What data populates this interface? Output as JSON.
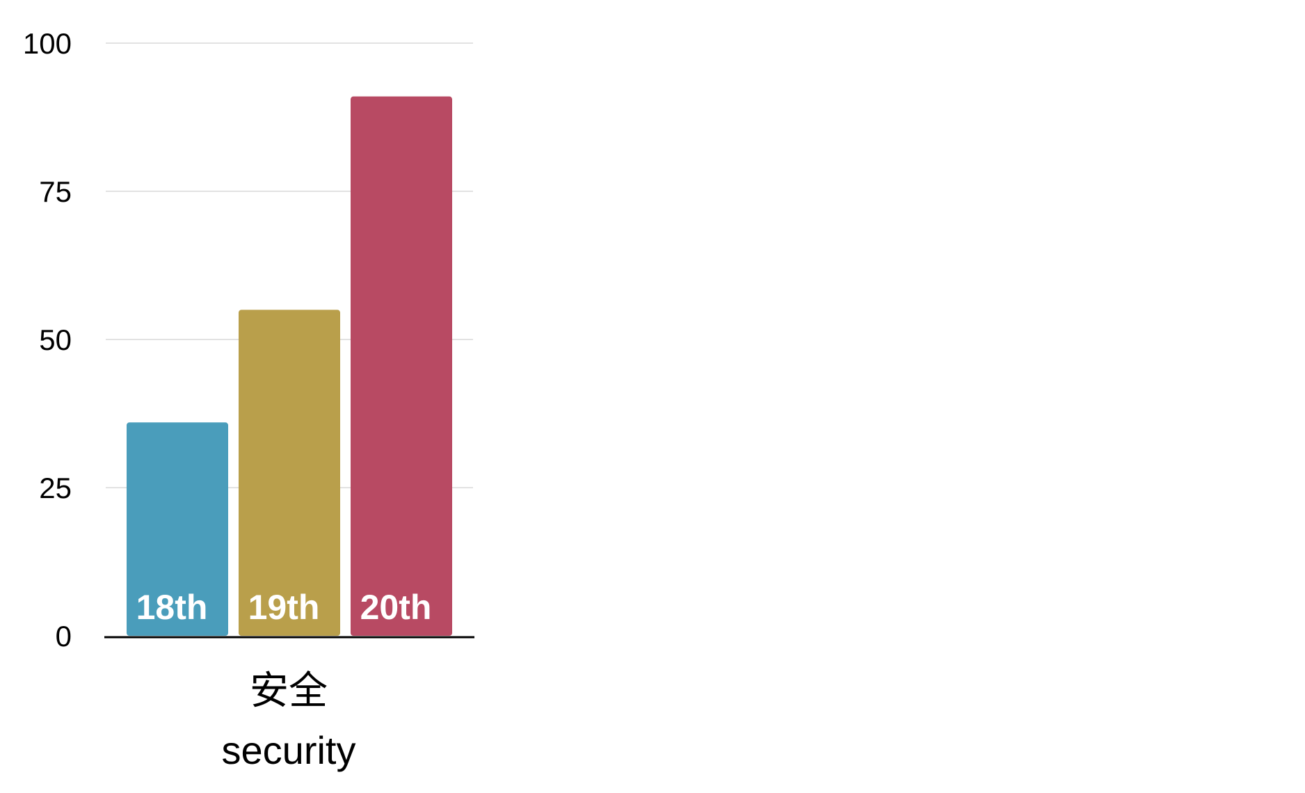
{
  "chart_data": {
    "type": "bar",
    "categories": [
      "安全",
      "security"
    ],
    "series": [
      {
        "label": "18th",
        "value": 36,
        "color": "#4a9dbb"
      },
      {
        "label": "19th",
        "value": 55,
        "color": "#b99f4b"
      },
      {
        "label": "20th",
        "value": 91,
        "color": "#b84a63"
      }
    ],
    "ylim": [
      0,
      100
    ],
    "yticks": [
      0,
      25,
      50,
      75,
      100
    ],
    "grid": true,
    "legend": "none"
  }
}
